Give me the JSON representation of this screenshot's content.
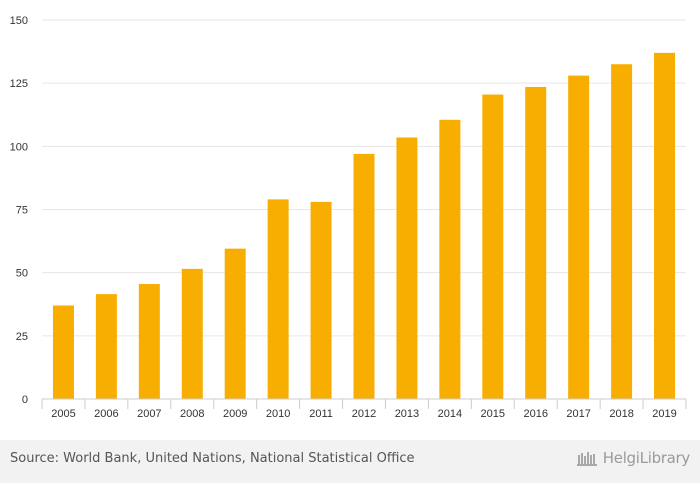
{
  "chart_data": {
    "type": "bar",
    "categories": [
      "2005",
      "2006",
      "2007",
      "2008",
      "2009",
      "2010",
      "2011",
      "2012",
      "2013",
      "2014",
      "2015",
      "2016",
      "2017",
      "2018",
      "2019"
    ],
    "values": [
      37,
      41.5,
      45.5,
      51.5,
      59.5,
      79,
      78,
      97,
      103.5,
      110.5,
      120.5,
      123.5,
      128,
      132.5,
      137
    ],
    "ylim": [
      0,
      150
    ],
    "yticks": [
      0,
      25,
      50,
      75,
      100,
      125,
      150
    ],
    "title": "",
    "xlabel": "",
    "ylabel": "",
    "grid": true,
    "bar_color": "#f7ae00",
    "grid_color": "#e6e6e6"
  },
  "footer": {
    "source": "Source: World Bank, United Nations, National Statistical Office",
    "brand": "HelgiLibrary"
  }
}
